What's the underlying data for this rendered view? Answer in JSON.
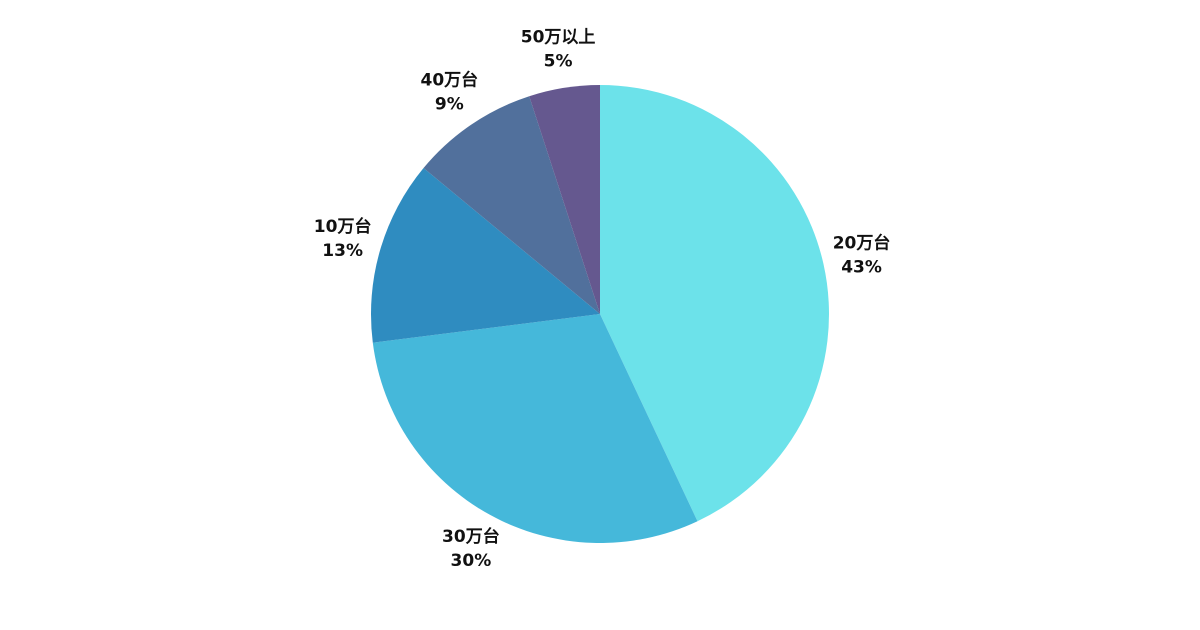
{
  "chart_data": {
    "type": "pie",
    "categories": [
      "20万台",
      "30万台",
      "10万台",
      "40万台",
      "50万以上"
    ],
    "values": [
      43,
      30,
      13,
      9,
      5
    ],
    "value_labels": [
      "43%",
      "30%",
      "13%",
      "9%",
      "5%"
    ],
    "colors": [
      "#6ce2ea",
      "#45b8da",
      "#2f8cc0",
      "#51709c",
      "#65588f"
    ]
  }
}
